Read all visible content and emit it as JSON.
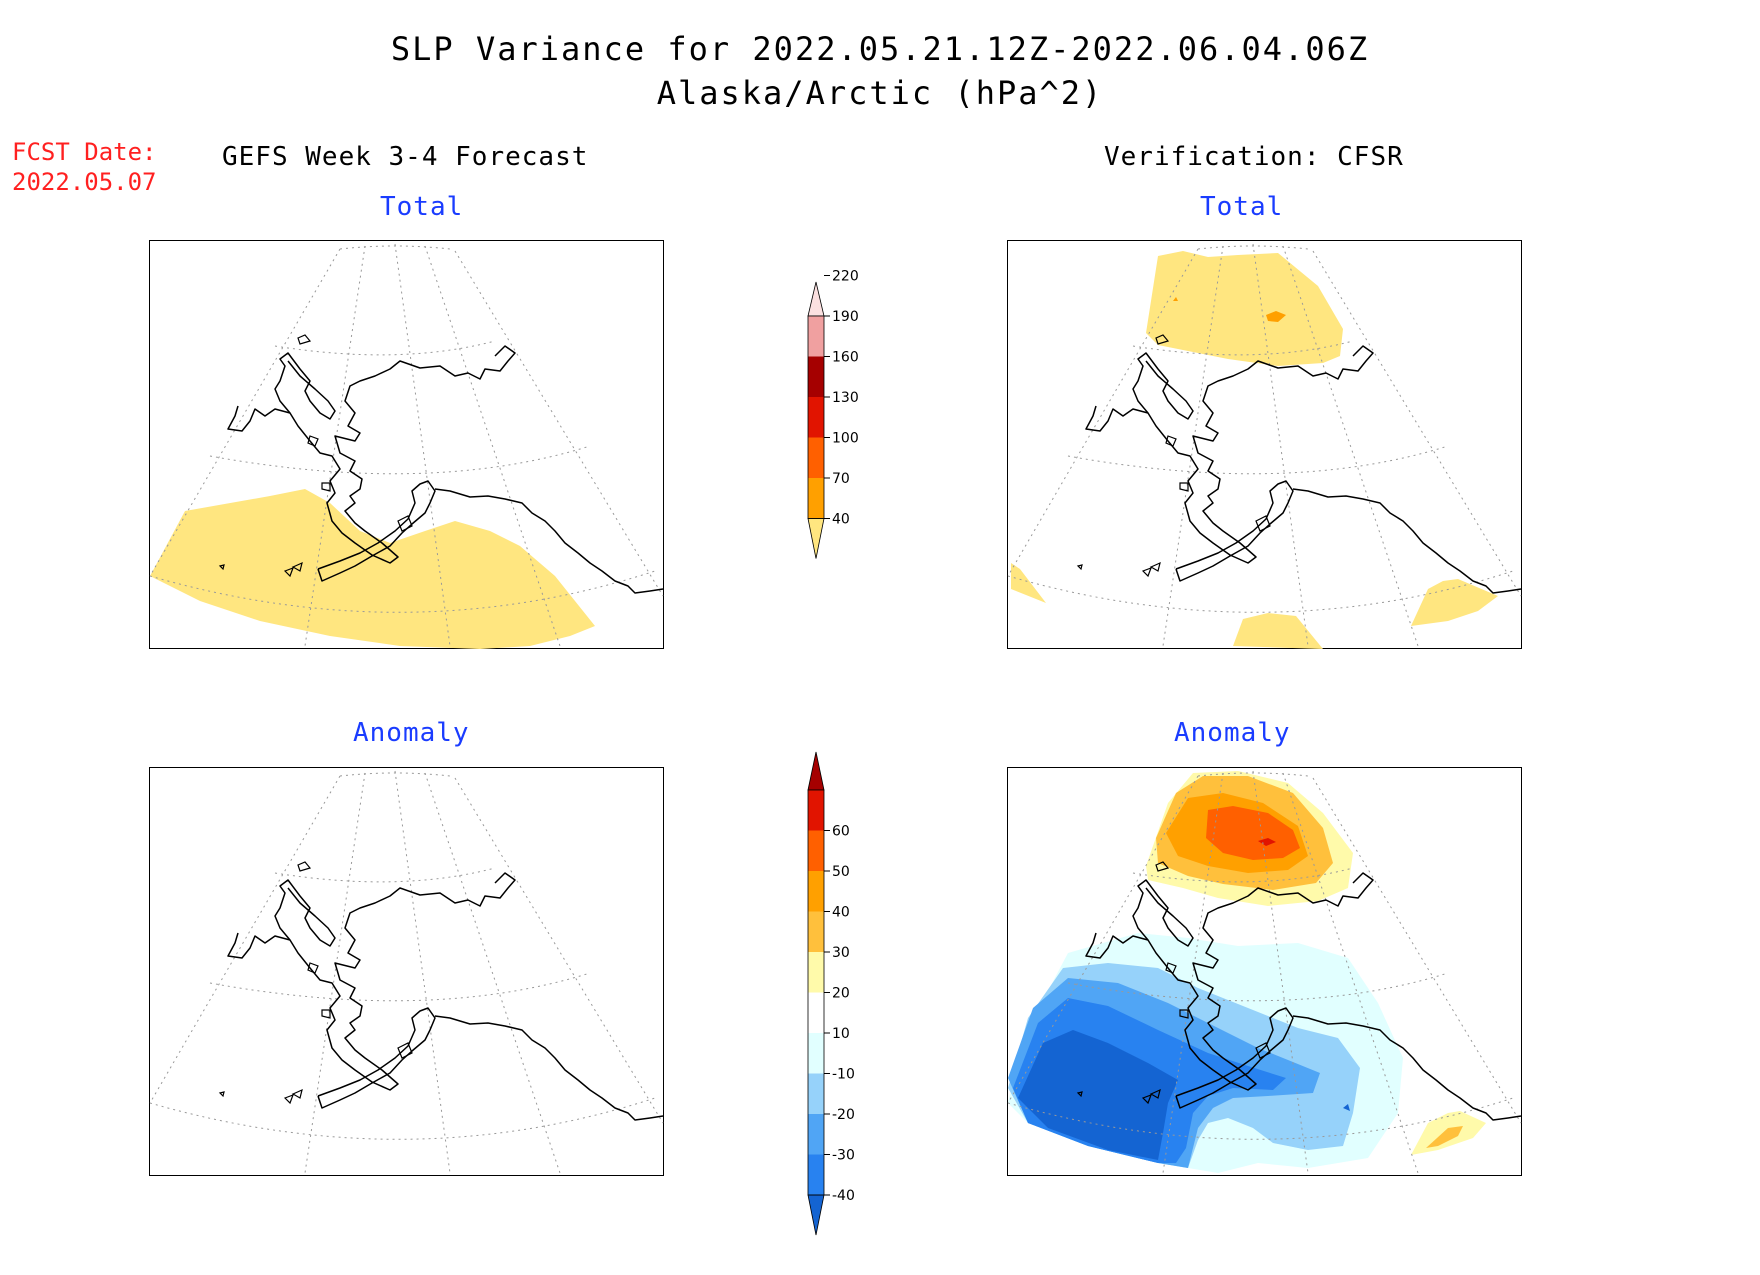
{
  "title": {
    "line1": "SLP Variance for 2022.05.21.12Z-2022.06.04.06Z",
    "line2": "Alaska/Arctic (hPa^2)"
  },
  "fcst": {
    "label": "FCST Date:",
    "date": "2022.05.07"
  },
  "columns": {
    "left": "GEFS Week 3-4 Forecast",
    "right": "Verification: CFSR"
  },
  "panels": {
    "forecast_total": {
      "title": "Total"
    },
    "verification_total": {
      "title": "Total"
    },
    "forecast_anomaly": {
      "title": "Anomaly"
    },
    "verification_anomaly": {
      "title": "Anomaly"
    }
  },
  "colorbar_total": {
    "labels": [
      "40",
      "70",
      "100",
      "130",
      "160",
      "190",
      "220"
    ],
    "colors": [
      "#ffe680",
      "#ffa000",
      "#ff6000",
      "#e11400",
      "#a50000",
      "#f0a0a0",
      "#fbe0e0"
    ]
  },
  "colorbar_anomaly": {
    "labels": [
      "-40",
      "-30",
      "-20",
      "-10",
      "10",
      "20",
      "30",
      "40",
      "50",
      "60"
    ],
    "colors": [
      "#1464d2",
      "#2882f0",
      "#50a5f5",
      "#96d2fa",
      "#e1ffff",
      "#ffffff",
      "#fffaaa",
      "#ffc03c",
      "#ffa000",
      "#ff6000",
      "#e11400",
      "#a50000"
    ]
  },
  "fill_colors": {
    "yellow": "#ffe680",
    "orange_light": "#ffc03c",
    "orange": "#ffa000",
    "orange_dark": "#ff6000",
    "red": "#e11400",
    "pale_yellow": "#fffaaa",
    "cyan_light": "#e1ffff",
    "blue_light": "#96d2fa",
    "blue_mid": "#50a5f5",
    "blue": "#2882f0",
    "blue_dark": "#1464d2"
  }
}
